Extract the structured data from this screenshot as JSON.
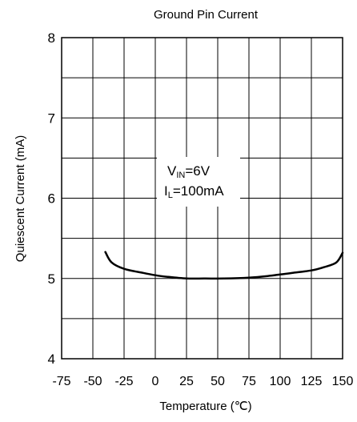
{
  "chart_data": {
    "type": "line",
    "title": "Ground Pin Current",
    "xlabel": "Temperature (℃)",
    "ylabel": "Quiescent Current (mA)",
    "xlim": [
      -75,
      150
    ],
    "ylim": [
      4,
      8
    ],
    "x_ticks": [
      -75,
      -50,
      -25,
      0,
      25,
      50,
      75,
      100,
      125,
      150
    ],
    "x_tick_labels": [
      "-75",
      "-50",
      "-25",
      "0",
      "25",
      "50",
      "75",
      "100",
      "125",
      "150"
    ],
    "y_ticks": [
      4,
      5,
      6,
      7,
      8
    ],
    "y_tick_labels": [
      "4",
      "5",
      "6",
      "7",
      "8"
    ],
    "grid": true,
    "annotation": {
      "line1_main": "V",
      "line1_sub": "IN",
      "line1_rest": "=6V",
      "line2_main": "I",
      "line2_sub": "L",
      "line2_rest": "=100mA"
    },
    "series": [
      {
        "x": [
          -40,
          -35,
          -25,
          -10,
          0,
          10,
          25,
          40,
          55,
          75,
          90,
          100,
          110,
          125,
          135,
          145,
          150
        ],
        "y": [
          5.33,
          5.2,
          5.12,
          5.07,
          5.04,
          5.02,
          5.0,
          5.0,
          5.0,
          5.01,
          5.03,
          5.05,
          5.07,
          5.1,
          5.14,
          5.2,
          5.32
        ]
      }
    ]
  }
}
